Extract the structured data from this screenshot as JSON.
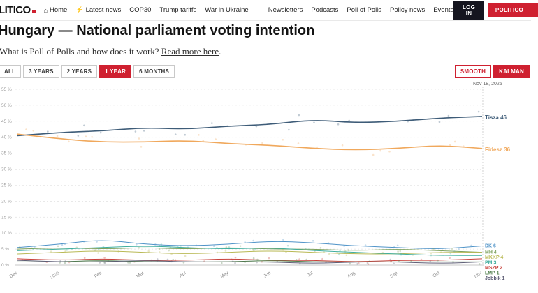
{
  "nav": {
    "logo": "LITICO",
    "items": [
      {
        "icon": "home",
        "label": "Home"
      },
      {
        "icon": "bolt",
        "label": "Latest news"
      },
      {
        "label": "COP30"
      },
      {
        "label": "Trump tariffs"
      },
      {
        "label": "War in Ukraine"
      },
      {
        "label": "Newsletters",
        "gap": true
      },
      {
        "label": "Podcasts"
      },
      {
        "label": "Poll of Polls"
      },
      {
        "label": "Policy news"
      },
      {
        "label": "Events"
      }
    ],
    "login_label": "LOG IN",
    "pro_label": "POLITICO"
  },
  "header": {
    "title": "Hungary — National parliament voting intention"
  },
  "intro": {
    "text": "What is Poll of Polls and how does it work? ",
    "link_text": "Read more here",
    "suffix": "."
  },
  "controls": {
    "ranges": [
      {
        "label": "ALL",
        "active": false
      },
      {
        "label": "3 YEARS",
        "active": false
      },
      {
        "label": "2 YEARS",
        "active": false
      },
      {
        "label": "1 YEAR",
        "active": true
      },
      {
        "label": "6 MONTHS",
        "active": false
      }
    ],
    "smoothing": [
      {
        "label": "SMOOTH",
        "active": false
      },
      {
        "label": "KALMAN",
        "active": true
      }
    ]
  },
  "chart_data": {
    "type": "line",
    "title": "Hungary — National parliament voting intention",
    "as_of_label": "Nov 18, 2025",
    "x_categories": [
      "Dec",
      "2025",
      "Feb",
      "Mar",
      "Apr",
      "May",
      "Jun",
      "Jul",
      "Aug",
      "Sep",
      "Oct",
      "Nov"
    ],
    "ylim": [
      0,
      55
    ],
    "y_ticks": [
      0,
      5,
      10,
      15,
      20,
      25,
      30,
      35,
      40,
      45,
      50,
      55
    ],
    "y_tick_suffix": " %",
    "grid": true,
    "legend_position": "right",
    "series": [
      {
        "name": "Tisza",
        "color": "#3e5c78",
        "end_value": 46,
        "values": [
          40.5,
          41.5,
          42,
          43,
          42.5,
          43.5,
          44,
          45.5,
          44.5,
          45,
          46,
          46.5
        ]
      },
      {
        "name": "Fidesz",
        "color": "#f0a85c",
        "end_value": 36,
        "values": [
          41,
          39.5,
          38.5,
          38.5,
          39,
          38,
          37.5,
          36.5,
          36,
          36.5,
          37.5,
          36.5
        ]
      },
      {
        "name": "DK",
        "color": "#4f93c8",
        "end_value": 6,
        "values": [
          5.5,
          6.5,
          8,
          6.5,
          6,
          6.5,
          7.5,
          7,
          6,
          5.5,
          5,
          6
        ]
      },
      {
        "name": "MH",
        "color": "#7ba05b",
        "end_value": 4,
        "values": [
          5,
          5.5,
          5,
          5.5,
          5,
          5.5,
          5,
          5,
          4.5,
          5,
          4.5,
          4
        ]
      },
      {
        "name": "MKKP",
        "color": "#b9b955",
        "end_value": 4,
        "values": [
          3.5,
          4,
          4.5,
          4,
          3.5,
          4,
          4.5,
          4,
          3.5,
          3.5,
          4,
          4
        ]
      },
      {
        "name": "PM",
        "color": "#3fae9e",
        "end_value": 3,
        "values": [
          4.5,
          5,
          5.5,
          6,
          5.5,
          5,
          5.5,
          4.5,
          4,
          3.5,
          3,
          3
        ]
      },
      {
        "name": "MSZP",
        "color": "#c8413b",
        "end_value": 2,
        "values": [
          2,
          1.5,
          2,
          1.5,
          1.5,
          2,
          1.5,
          1.5,
          1,
          1.5,
          1.5,
          2
        ]
      },
      {
        "name": "LMP",
        "color": "#4e7d49",
        "end_value": 1,
        "values": [
          1,
          1,
          1.5,
          1,
          1,
          1,
          1.5,
          1,
          1,
          1,
          1,
          1
        ]
      },
      {
        "name": "Jobbik",
        "color": "#5d5d75",
        "end_value": 1,
        "values": [
          1.5,
          1,
          1,
          1.5,
          1,
          1,
          1,
          0.5,
          1,
          1,
          0.5,
          1
        ]
      }
    ]
  }
}
